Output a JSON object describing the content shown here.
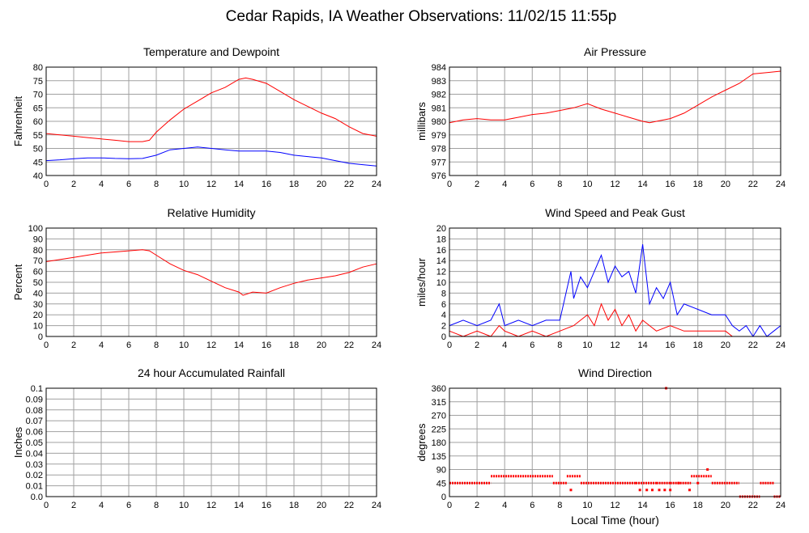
{
  "page": {
    "title": "Cedar Rapids, IA Weather Observations: 11/02/15 11:55p"
  },
  "colors": {
    "series_red": "#ff0000",
    "series_blue": "#0000ff",
    "grid": "#a0a0a0",
    "frame": "#000000"
  },
  "chart_data": [
    {
      "id": "temp",
      "type": "line",
      "title": "Temperature and Dewpoint",
      "ylabel": "Fahrenheit",
      "xlabel": "",
      "xlim": [
        0,
        24
      ],
      "ylim": [
        40,
        80
      ],
      "xticks": [
        0,
        2,
        4,
        6,
        8,
        10,
        12,
        14,
        16,
        18,
        20,
        22,
        24
      ],
      "yticks": [
        40,
        45,
        50,
        55,
        60,
        65,
        70,
        75,
        80
      ],
      "grid": true,
      "series": [
        {
          "color": "#ff0000",
          "x": [
            0,
            1,
            2,
            3,
            4,
            5,
            6,
            7,
            7.5,
            8,
            9,
            10,
            11,
            12,
            13,
            14,
            14.5,
            15,
            16,
            17,
            18,
            19,
            20,
            21,
            22,
            23,
            24
          ],
          "y": [
            55.5,
            55,
            54.5,
            54,
            53.5,
            53,
            52.5,
            52.5,
            53,
            56,
            60.5,
            64.5,
            67.5,
            70.5,
            72.5,
            75.5,
            76,
            75.5,
            74,
            71,
            68,
            65.5,
            63,
            61,
            58,
            55.5,
            54.5
          ]
        },
        {
          "color": "#0000ff",
          "x": [
            0,
            1,
            2,
            3,
            4,
            5,
            6,
            7,
            8,
            9,
            10,
            11,
            12,
            13,
            14,
            15,
            16,
            17,
            18,
            19,
            20,
            21,
            22,
            23,
            24
          ],
          "y": [
            45.5,
            45.8,
            46.2,
            46.5,
            46.5,
            46.3,
            46.2,
            46.3,
            47.5,
            49.5,
            50,
            50.5,
            50,
            49.5,
            49,
            49,
            49,
            48.5,
            47.5,
            47,
            46.5,
            45.5,
            44.5,
            44,
            43.5
          ]
        }
      ]
    },
    {
      "id": "pressure",
      "type": "line",
      "title": "Air Pressure",
      "ylabel": "millibars",
      "xlabel": "",
      "xlim": [
        0,
        24
      ],
      "ylim": [
        976,
        984
      ],
      "xticks": [
        0,
        2,
        4,
        6,
        8,
        10,
        12,
        14,
        16,
        18,
        20,
        22,
        24
      ],
      "yticks": [
        976,
        977,
        978,
        979,
        980,
        981,
        982,
        983,
        984
      ],
      "grid": true,
      "series": [
        {
          "color": "#ff0000",
          "x": [
            0,
            1,
            2,
            3,
            4,
            5,
            6,
            7,
            8,
            9,
            10,
            11,
            12,
            13,
            14,
            14.5,
            15,
            16,
            17,
            18,
            19,
            20,
            21,
            22,
            23,
            24
          ],
          "y": [
            979.9,
            980.1,
            980.2,
            980.1,
            980.1,
            980.3,
            980.5,
            980.6,
            980.8,
            981.0,
            981.3,
            980.9,
            980.6,
            980.3,
            980.0,
            979.9,
            980.0,
            980.2,
            980.6,
            981.2,
            981.8,
            982.3,
            982.8,
            983.5,
            983.6,
            983.7
          ]
        }
      ]
    },
    {
      "id": "humidity",
      "type": "line",
      "title": "Relative Humidity",
      "ylabel": "Percent",
      "xlabel": "",
      "xlim": [
        0,
        24
      ],
      "ylim": [
        0,
        100
      ],
      "xticks": [
        0,
        2,
        4,
        6,
        8,
        10,
        12,
        14,
        16,
        18,
        20,
        22,
        24
      ],
      "yticks": [
        0,
        10,
        20,
        30,
        40,
        50,
        60,
        70,
        80,
        90,
        100
      ],
      "grid": true,
      "series": [
        {
          "color": "#ff0000",
          "x": [
            0,
            1,
            2,
            3,
            4,
            5,
            6,
            7,
            7.5,
            8,
            9,
            10,
            11,
            12,
            13,
            14,
            14.3,
            15,
            16,
            17,
            18,
            19,
            20,
            21,
            22,
            23,
            24
          ],
          "y": [
            69,
            71,
            73,
            75,
            77,
            78,
            79,
            80,
            79,
            75,
            67,
            61,
            57,
            51,
            45,
            41,
            38,
            41,
            40,
            45,
            49,
            52,
            54,
            56,
            59,
            64,
            67
          ]
        }
      ]
    },
    {
      "id": "wind",
      "type": "line",
      "title": "Wind Speed and Peak Gust",
      "ylabel": "miles/hour",
      "xlabel": "",
      "xlim": [
        0,
        24
      ],
      "ylim": [
        0,
        20
      ],
      "xticks": [
        0,
        2,
        4,
        6,
        8,
        10,
        12,
        14,
        16,
        18,
        20,
        22,
        24
      ],
      "yticks": [
        0,
        2,
        4,
        6,
        8,
        10,
        12,
        14,
        16,
        18,
        20
      ],
      "grid": true,
      "series": [
        {
          "color": "#0000ff",
          "x": [
            0,
            1,
            2,
            3,
            3.6,
            4,
            5,
            6,
            7,
            8,
            8.8,
            9,
            9.5,
            10,
            10.5,
            11,
            11.5,
            12,
            12.5,
            13,
            13.5,
            14,
            14.5,
            15,
            15.5,
            16,
            16.5,
            17,
            18,
            19,
            20,
            20.5,
            21,
            21.5,
            22,
            22.5,
            23,
            23.5,
            24
          ],
          "y": [
            2,
            3,
            2,
            3,
            6,
            2,
            3,
            2,
            3,
            3,
            12,
            7,
            11,
            9,
            12,
            15,
            10,
            13,
            11,
            12,
            8,
            17,
            6,
            9,
            7,
            10,
            4,
            6,
            5,
            4,
            4,
            2,
            1,
            2,
            0,
            2,
            0,
            1,
            2
          ]
        },
        {
          "color": "#ff0000",
          "x": [
            0,
            1,
            2,
            3,
            3.6,
            4,
            5,
            6,
            7,
            8,
            9,
            9.5,
            10,
            10.5,
            11,
            11.5,
            12,
            12.5,
            13,
            13.5,
            14,
            14.5,
            15,
            16,
            17,
            18,
            19,
            20,
            20.5,
            21,
            22,
            23,
            24
          ],
          "y": [
            1,
            0,
            1,
            0,
            2,
            1,
            0,
            1,
            0,
            1,
            2,
            3,
            4,
            2,
            6,
            3,
            5,
            2,
            4,
            1,
            3,
            2,
            1,
            2,
            1,
            1,
            1,
            1,
            0,
            0,
            0,
            0,
            0
          ]
        }
      ]
    },
    {
      "id": "rain",
      "type": "line",
      "title": "24 hour Accumulated Rainfall",
      "ylabel": "Inches",
      "xlabel": "",
      "xlim": [
        0,
        24
      ],
      "ylim": [
        0,
        0.1
      ],
      "xticks": [
        0,
        2,
        4,
        6,
        8,
        10,
        12,
        14,
        16,
        18,
        20,
        22,
        24
      ],
      "yticks": [
        "0.0",
        "0.01",
        "0.02",
        "0.03",
        "0.04",
        "0.05",
        "0.06",
        "0.07",
        "0.08",
        "0.09",
        "0.1"
      ],
      "grid": true,
      "series": [
        {
          "color": "#ff0000",
          "x": [
            0,
            24
          ],
          "y": [
            0,
            0
          ]
        }
      ]
    },
    {
      "id": "direction",
      "type": "scatter",
      "title": "Wind Direction",
      "ylabel": "degrees",
      "xlabel": "Local Time (hour)",
      "xlim": [
        0,
        24
      ],
      "ylim": [
        0,
        360
      ],
      "xticks": [
        0,
        2,
        4,
        6,
        8,
        10,
        12,
        14,
        16,
        18,
        20,
        22,
        24
      ],
      "yticks": [
        0,
        45,
        90,
        135,
        180,
        225,
        270,
        315,
        360
      ],
      "grid": true,
      "series": [
        {
          "color": "#ff0000",
          "segments": [
            [
              0,
              3,
              45
            ],
            [
              3,
              7.5,
              68
            ],
            [
              7.5,
              8.5,
              45
            ],
            [
              8.5,
              9.5,
              68
            ],
            [
              9.5,
              13.5,
              45
            ],
            [
              13.5,
              15,
              45
            ],
            [
              15,
              16,
              45
            ],
            [
              16,
              17.5,
              45
            ],
            [
              17.5,
              19,
              68
            ],
            [
              19,
              21,
              45
            ],
            [
              21,
              22.5,
              0
            ],
            [
              22.5,
              23.5,
              45
            ],
            [
              23.5,
              24,
              0
            ]
          ],
          "x": [
            8.8,
            13.8,
            14.3,
            14.7,
            15.2,
            15.6,
            15.7,
            16.0,
            16.6,
            17.4,
            18.0,
            18.7
          ],
          "y": [
            22,
            22,
            22,
            22,
            22,
            22,
            360,
            22,
            45,
            22,
            45,
            90
          ]
        }
      ]
    }
  ]
}
